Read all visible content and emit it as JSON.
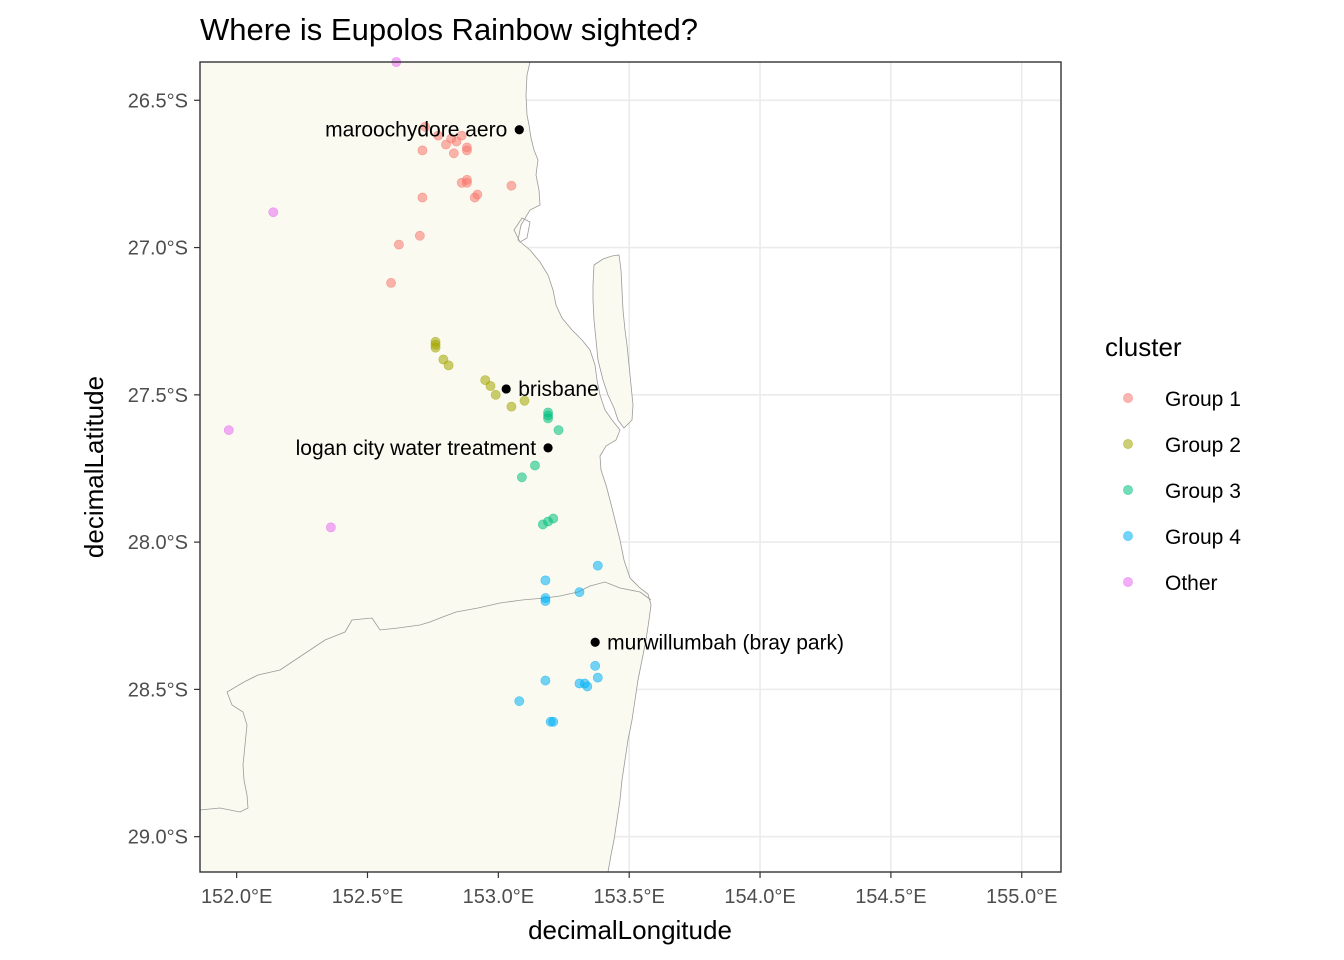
{
  "chart_data": {
    "type": "scatter",
    "title": "Where is Eupolos Rainbow sighted?",
    "xlabel": "decimalLongitude",
    "ylabel": "decimalLatitude",
    "xlim": [
      151.86,
      155.15
    ],
    "ylim": [
      -29.12,
      -26.37
    ],
    "x_ticks": [
      {
        "value": 152.0,
        "label": "152.0°E"
      },
      {
        "value": 152.5,
        "label": "152.5°E"
      },
      {
        "value": 153.0,
        "label": "153.0°E"
      },
      {
        "value": 153.5,
        "label": "153.5°E"
      },
      {
        "value": 154.0,
        "label": "154.0°E"
      },
      {
        "value": 154.5,
        "label": "154.5°E"
      },
      {
        "value": 155.0,
        "label": "155.0°E"
      }
    ],
    "y_ticks": [
      {
        "value": -26.5,
        "label": "26.5°S"
      },
      {
        "value": -27.0,
        "label": "27.0°S"
      },
      {
        "value": -27.5,
        "label": "27.5°S"
      },
      {
        "value": -28.0,
        "label": "28.0°S"
      },
      {
        "value": -28.5,
        "label": "28.5°S"
      },
      {
        "value": -29.0,
        "label": "29.0°S"
      }
    ],
    "grid": true,
    "legend": {
      "title": "cluster",
      "position": "right",
      "entries": [
        {
          "label": "Group 1",
          "color": "#F8766D"
        },
        {
          "label": "Group 2",
          "color": "#A3A500"
        },
        {
          "label": "Group 3",
          "color": "#00BF7D"
        },
        {
          "label": "Group 4",
          "color": "#00B0F6"
        },
        {
          "label": "Other",
          "color": "#E76BF3"
        }
      ]
    },
    "series": [
      {
        "name": "Group 1",
        "color": "#F8766D",
        "points": [
          [
            152.72,
            -26.59
          ],
          [
            152.77,
            -26.62
          ],
          [
            152.8,
            -26.65
          ],
          [
            152.82,
            -26.63
          ],
          [
            152.84,
            -26.64
          ],
          [
            152.86,
            -26.62
          ],
          [
            152.88,
            -26.66
          ],
          [
            152.88,
            -26.67
          ],
          [
            152.83,
            -26.68
          ],
          [
            152.71,
            -26.67
          ],
          [
            152.86,
            -26.78
          ],
          [
            152.88,
            -26.77
          ],
          [
            152.88,
            -26.78
          ],
          [
            152.92,
            -26.82
          ],
          [
            152.91,
            -26.83
          ],
          [
            153.05,
            -26.79
          ],
          [
            152.71,
            -26.83
          ],
          [
            152.7,
            -26.96
          ],
          [
            152.62,
            -26.99
          ],
          [
            152.59,
            -27.12
          ]
        ]
      },
      {
        "name": "Group 2",
        "color": "#A3A500",
        "points": [
          [
            152.76,
            -27.32
          ],
          [
            152.76,
            -27.33
          ],
          [
            152.76,
            -27.34
          ],
          [
            152.79,
            -27.38
          ],
          [
            152.81,
            -27.4
          ],
          [
            152.95,
            -27.45
          ],
          [
            152.97,
            -27.47
          ],
          [
            152.99,
            -27.5
          ],
          [
            153.05,
            -27.54
          ],
          [
            153.1,
            -27.52
          ]
        ]
      },
      {
        "name": "Group 3",
        "color": "#00BF7D",
        "points": [
          [
            153.19,
            -27.56
          ],
          [
            153.19,
            -27.57
          ],
          [
            153.19,
            -27.58
          ],
          [
            153.23,
            -27.62
          ],
          [
            153.14,
            -27.74
          ],
          [
            153.09,
            -27.78
          ],
          [
            153.17,
            -27.94
          ],
          [
            153.19,
            -27.93
          ],
          [
            153.21,
            -27.92
          ]
        ]
      },
      {
        "name": "Group 4",
        "color": "#00B0F6",
        "points": [
          [
            153.38,
            -28.08
          ],
          [
            153.18,
            -28.13
          ],
          [
            153.31,
            -28.17
          ],
          [
            153.18,
            -28.19
          ],
          [
            153.18,
            -28.2
          ],
          [
            153.37,
            -28.42
          ],
          [
            153.38,
            -28.46
          ],
          [
            153.31,
            -28.48
          ],
          [
            153.33,
            -28.48
          ],
          [
            153.34,
            -28.49
          ],
          [
            153.18,
            -28.47
          ],
          [
            153.08,
            -28.54
          ],
          [
            153.2,
            -28.61
          ],
          [
            153.21,
            -28.61
          ]
        ]
      },
      {
        "name": "Other",
        "color": "#E76BF3",
        "points": [
          [
            152.14,
            -26.88
          ],
          [
            151.97,
            -27.62
          ],
          [
            152.36,
            -27.95
          ],
          [
            152.61,
            -26.37
          ]
        ]
      }
    ],
    "annotations": [
      {
        "label": "maroochydore aero",
        "x": 153.08,
        "y": -26.6,
        "side": "left"
      },
      {
        "label": "brisbane",
        "x": 153.03,
        "y": -27.48,
        "side": "right"
      },
      {
        "label": "logan city water treatment",
        "x": 153.19,
        "y": -27.68,
        "side": "left"
      },
      {
        "label": "murwillumbah (bray park)",
        "x": 153.37,
        "y": -28.34,
        "side": "right"
      }
    ],
    "land_color": "#FAFAF0"
  }
}
